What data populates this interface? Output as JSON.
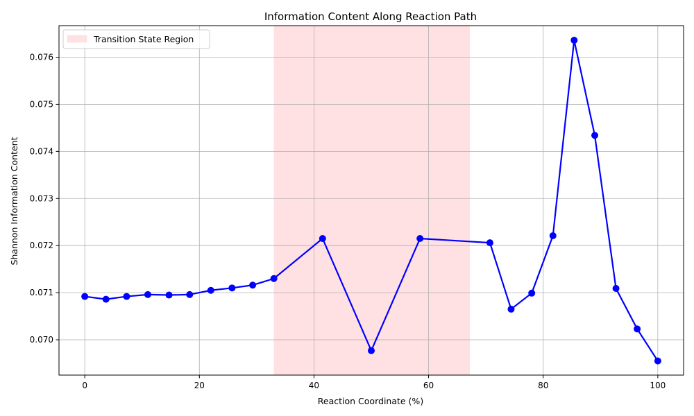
{
  "chart_data": {
    "type": "line",
    "title": "Information Content Along Reaction Path",
    "xlabel": "Reaction Coordinate (%)",
    "ylabel": "Shannon Information Content",
    "xlim": [
      -4.5,
      104.5
    ],
    "ylim": [
      0.06925,
      0.07667
    ],
    "xticks": [
      0,
      20,
      40,
      60,
      80,
      100
    ],
    "xtick_labels": [
      "0",
      "20",
      "40",
      "60",
      "80",
      "100"
    ],
    "yticks": [
      0.07,
      0.071,
      0.072,
      0.073,
      0.074,
      0.075,
      0.076
    ],
    "ytick_labels": [
      "0.070",
      "0.071",
      "0.072",
      "0.073",
      "0.074",
      "0.075",
      "0.076"
    ],
    "grid": true,
    "legend_position": "top-left",
    "shaded_region": {
      "label": "Transition State Region",
      "x_start": 33.0,
      "x_end": 67.2,
      "color": "#ffe1e4"
    },
    "series": [
      {
        "color": "#0000ff",
        "marker": "circle",
        "x": [
          0.0,
          3.7,
          7.3,
          11.0,
          14.7,
          18.3,
          22.0,
          25.7,
          29.3,
          33.0,
          41.5,
          50.0,
          58.5,
          70.7,
          74.4,
          78.0,
          81.7,
          85.4,
          89.0,
          92.7,
          96.4,
          100.0
        ],
        "y": [
          0.07092,
          0.07086,
          0.07092,
          0.07096,
          0.07095,
          0.07096,
          0.07105,
          0.0711,
          0.07116,
          0.0713,
          0.07215,
          0.06977,
          0.07215,
          0.07206,
          0.07065,
          0.07099,
          0.07221,
          0.07636,
          0.07434,
          0.07109,
          0.07023,
          0.06955
        ]
      }
    ]
  }
}
